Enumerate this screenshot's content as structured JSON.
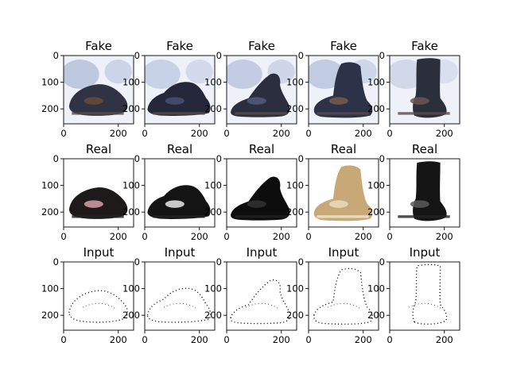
{
  "figure": {
    "rows": [
      {
        "row": "fake",
        "panels": [
          {
            "title": "Fake",
            "subject": "dark sandal, blurry generated image",
            "palette": {
              "shoe": "#2f3344",
              "accent": "#6b4a3a",
              "bg": "#aab8d6"
            }
          },
          {
            "title": "Fake",
            "subject": "dark sneaker, blurry generated image",
            "palette": {
              "shoe": "#24283a",
              "accent": "#4a4f70",
              "bg": "#b7c4de"
            }
          },
          {
            "title": "Fake",
            "subject": "dark sandal, blurry generated image",
            "palette": {
              "shoe": "#2a2e3e",
              "accent": "#515a7a",
              "bg": "#b0bcd8"
            }
          },
          {
            "title": "Fake",
            "subject": "dark ankle boot, blurry generated image",
            "palette": {
              "shoe": "#2c3248",
              "accent": "#7a5a4a",
              "bg": "#aebbd9"
            }
          },
          {
            "title": "Fake",
            "subject": "dark tall boot, blurry generated image",
            "palette": {
              "shoe": "#2b2f3c",
              "accent": "#6b5650",
              "bg": "#c4cde4"
            }
          }
        ]
      },
      {
        "row": "real",
        "panels": [
          {
            "title": "Real",
            "subject": "child sandal with pink flower pattern",
            "palette": {
              "shoe": "#1e1a1a",
              "accent": "#d7a0a8",
              "bg": "#ffffff"
            }
          },
          {
            "title": "Real",
            "subject": "black sneaker with white stripes",
            "palette": {
              "shoe": "#141414",
              "accent": "#e8e8e8",
              "bg": "#ffffff"
            }
          },
          {
            "title": "Real",
            "subject": "black sport sandal",
            "palette": {
              "shoe": "#0d0d0d",
              "accent": "#333333",
              "bg": "#ffffff"
            }
          },
          {
            "title": "Real",
            "subject": "tan lace-up boot",
            "palette": {
              "shoe": "#c9a878",
              "accent": "#e9dcc2",
              "bg": "#ffffff"
            }
          },
          {
            "title": "Real",
            "subject": "black tall snow boot",
            "palette": {
              "shoe": "#151515",
              "accent": "#5a5a5a",
              "bg": "#ffffff"
            }
          }
        ]
      },
      {
        "row": "input",
        "panels": [
          {
            "title": "Input",
            "subject": "edge sketch of sandal",
            "palette": {
              "shoe": "#000000",
              "accent": "#000000",
              "bg": "#ffffff"
            }
          },
          {
            "title": "Input",
            "subject": "edge sketch of sneaker",
            "palette": {
              "shoe": "#000000",
              "accent": "#000000",
              "bg": "#ffffff"
            }
          },
          {
            "title": "Input",
            "subject": "edge sketch of sandal",
            "palette": {
              "shoe": "#000000",
              "accent": "#000000",
              "bg": "#ffffff"
            }
          },
          {
            "title": "Input",
            "subject": "edge sketch of boot",
            "palette": {
              "shoe": "#000000",
              "accent": "#000000",
              "bg": "#ffffff"
            }
          },
          {
            "title": "Input",
            "subject": "edge sketch of tall boot",
            "palette": {
              "shoe": "#000000",
              "accent": "#000000",
              "bg": "#ffffff"
            }
          }
        ]
      }
    ],
    "yticks": [
      "0",
      "100",
      "200"
    ],
    "xticks": [
      "0",
      "200"
    ]
  }
}
